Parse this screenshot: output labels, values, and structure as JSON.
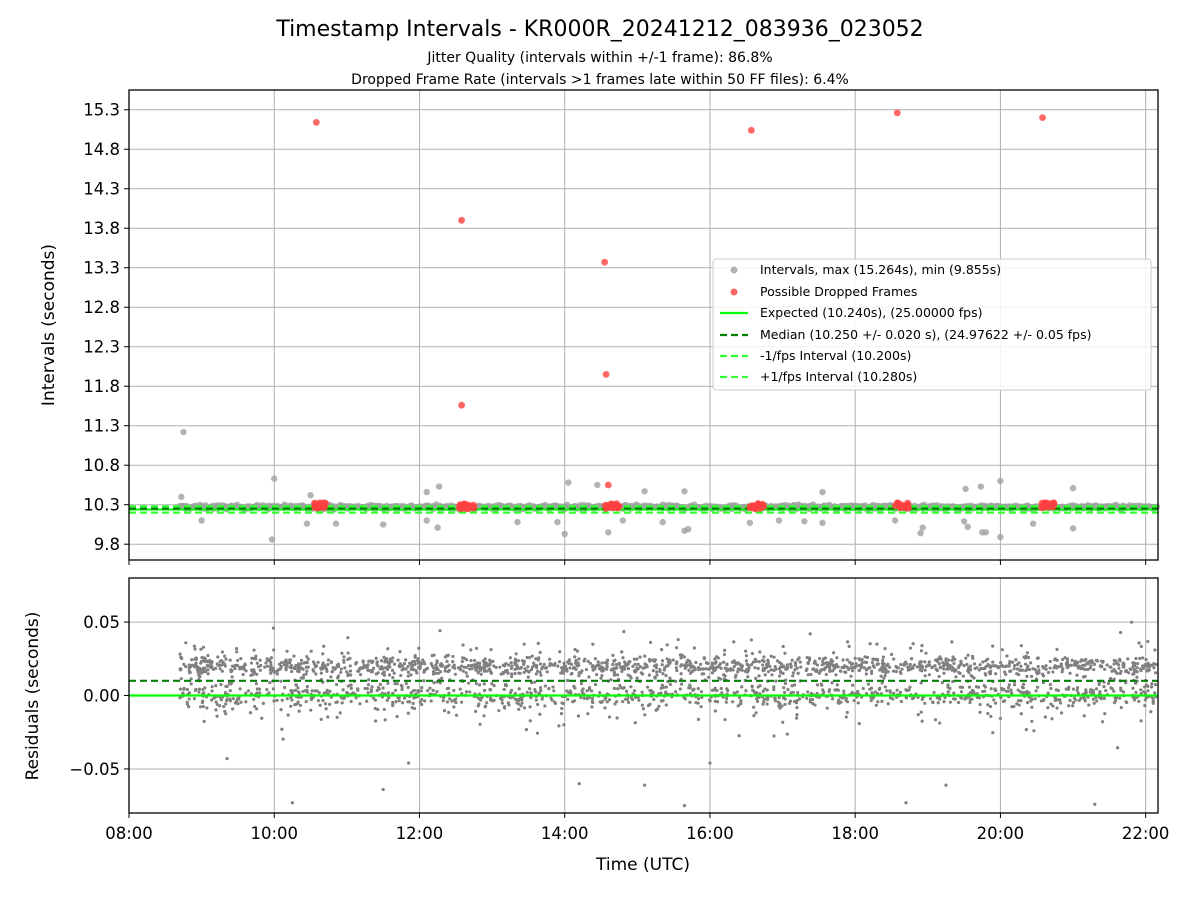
{
  "figure": {
    "title": "Timestamp Intervals - KR000R_20241212_083936_023052",
    "subtitle_line1": "Jitter Quality (intervals within +/-1 frame): 86.8%",
    "subtitle_line2": "Dropped Frame Rate (intervals >1 frames late within 50 FF files): 6.4%"
  },
  "colors": {
    "intervals": "#a0a0a0",
    "dropped": "#ff4040",
    "expected": "#00ff00",
    "median": "#008000",
    "fps_bounds": "#33ff33",
    "residual_points": "#808080",
    "grid": "#b0b0b0"
  },
  "chart_data": [
    {
      "type": "scatter",
      "panel": "top",
      "ylabel": "Intervals (seconds)",
      "xlabel": "",
      "x_unit": "hours UTC",
      "xlim": [
        8.0,
        22.17
      ],
      "ylim": [
        9.6,
        15.55
      ],
      "x_ticks": [
        8,
        10,
        12,
        14,
        16,
        18,
        20,
        22
      ],
      "y_ticks": [
        9.8,
        10.3,
        10.8,
        11.3,
        11.8,
        12.3,
        12.8,
        13.3,
        13.8,
        14.3,
        14.8,
        15.3
      ],
      "y_tick_labels": [
        "9.8",
        "10.3",
        "10.8",
        "11.3",
        "11.8",
        "12.3",
        "12.8",
        "13.3",
        "13.8",
        "14.3",
        "14.8",
        "15.3"
      ],
      "grid": true,
      "legend_position": "center-right",
      "series": [
        {
          "name": "Intervals, max (15.264s), min (9.855s)",
          "kind": "points",
          "x_range": [
            8.7,
            22.15
          ],
          "band_center": 10.27,
          "band_spread": 0.05,
          "outliers": [
            {
              "x": 8.75,
              "y": 11.22
            },
            {
              "x": 8.72,
              "y": 10.4
            },
            {
              "x": 9.0,
              "y": 10.1
            },
            {
              "x": 9.97,
              "y": 9.86
            },
            {
              "x": 10.0,
              "y": 10.63
            },
            {
              "x": 10.45,
              "y": 10.06
            },
            {
              "x": 10.5,
              "y": 10.42
            },
            {
              "x": 10.85,
              "y": 10.06
            },
            {
              "x": 11.5,
              "y": 10.05
            },
            {
              "x": 12.1,
              "y": 10.1
            },
            {
              "x": 12.1,
              "y": 10.46
            },
            {
              "x": 12.25,
              "y": 10.01
            },
            {
              "x": 12.27,
              "y": 10.53
            },
            {
              "x": 13.35,
              "y": 10.08
            },
            {
              "x": 13.9,
              "y": 10.08
            },
            {
              "x": 14.0,
              "y": 9.93
            },
            {
              "x": 14.05,
              "y": 10.58
            },
            {
              "x": 14.45,
              "y": 10.55
            },
            {
              "x": 14.6,
              "y": 9.95
            },
            {
              "x": 14.8,
              "y": 10.1
            },
            {
              "x": 15.1,
              "y": 10.47
            },
            {
              "x": 15.35,
              "y": 10.08
            },
            {
              "x": 15.65,
              "y": 10.47
            },
            {
              "x": 15.65,
              "y": 9.97
            },
            {
              "x": 15.7,
              "y": 9.99
            },
            {
              "x": 16.55,
              "y": 10.07
            },
            {
              "x": 16.95,
              "y": 10.1
            },
            {
              "x": 17.3,
              "y": 10.09
            },
            {
              "x": 17.55,
              "y": 10.07
            },
            {
              "x": 17.55,
              "y": 10.46
            },
            {
              "x": 18.55,
              "y": 10.1
            },
            {
              "x": 18.9,
              "y": 9.94
            },
            {
              "x": 18.93,
              "y": 10.01
            },
            {
              "x": 19.5,
              "y": 10.09
            },
            {
              "x": 19.52,
              "y": 10.5
            },
            {
              "x": 19.55,
              "y": 10.02
            },
            {
              "x": 19.73,
              "y": 10.53
            },
            {
              "x": 19.75,
              "y": 9.95
            },
            {
              "x": 19.8,
              "y": 9.95
            },
            {
              "x": 20.0,
              "y": 10.6
            },
            {
              "x": 20.0,
              "y": 9.89
            },
            {
              "x": 20.45,
              "y": 10.06
            },
            {
              "x": 21.0,
              "y": 10.51
            },
            {
              "x": 21.0,
              "y": 10.0
            }
          ]
        },
        {
          "name": "Possible Dropped Frames",
          "kind": "points",
          "points": [
            {
              "x": 10.58,
              "y": 15.14
            },
            {
              "x": 12.58,
              "y": 13.9
            },
            {
              "x": 12.58,
              "y": 11.56
            },
            {
              "x": 14.55,
              "y": 13.37
            },
            {
              "x": 14.57,
              "y": 11.95
            },
            {
              "x": 14.6,
              "y": 10.55
            },
            {
              "x": 16.57,
              "y": 15.04
            },
            {
              "x": 18.58,
              "y": 15.26
            },
            {
              "x": 20.58,
              "y": 15.2
            }
          ],
          "clusters": [
            {
              "x_start": 10.55,
              "x_end": 10.75,
              "y": 10.29
            },
            {
              "x_start": 12.55,
              "x_end": 12.75,
              "y": 10.28
            },
            {
              "x_start": 14.55,
              "x_end": 14.75,
              "y": 10.28
            },
            {
              "x_start": 16.55,
              "x_end": 16.75,
              "y": 10.28
            },
            {
              "x_start": 18.55,
              "x_end": 18.75,
              "y": 10.29
            },
            {
              "x_start": 20.55,
              "x_end": 20.75,
              "y": 10.29
            }
          ]
        },
        {
          "name": "Expected (10.240s), (25.00000 fps)",
          "kind": "hline",
          "y": 10.24,
          "style": "solid"
        },
        {
          "name": "Median (10.250 +/- 0.020 s), (24.97622 +/- 0.05 fps)",
          "kind": "hline",
          "y": 10.25,
          "style": "dashed"
        },
        {
          "name": "-1/fps Interval (10.200s)",
          "kind": "hline",
          "y": 10.2,
          "style": "dashed"
        },
        {
          "name": "+1/fps Interval (10.280s)",
          "kind": "hline",
          "y": 10.28,
          "style": "dashed"
        }
      ]
    },
    {
      "type": "scatter",
      "panel": "bottom",
      "xlabel": "Time (UTC)",
      "ylabel": "Residuals (seconds)",
      "xlim": [
        8.0,
        22.17
      ],
      "ylim": [
        -0.08,
        0.08
      ],
      "x_ticks": [
        8,
        10,
        12,
        14,
        16,
        18,
        20,
        22
      ],
      "x_tick_labels": [
        "08:00",
        "10:00",
        "12:00",
        "14:00",
        "16:00",
        "18:00",
        "20:00",
        "22:00"
      ],
      "y_ticks": [
        -0.05,
        0.0,
        0.05
      ],
      "y_tick_labels": [
        "−0.05",
        "0.00",
        "0.05"
      ],
      "grid": true,
      "series": [
        {
          "kind": "points",
          "x_range": [
            8.7,
            22.15
          ],
          "primary_cluster": 0.02,
          "secondary_cluster": 0.0,
          "spread": 0.03,
          "outliers": [
            {
              "x": 9.35,
              "y": -0.043
            },
            {
              "x": 10.25,
              "y": -0.073
            },
            {
              "x": 11.5,
              "y": -0.064
            },
            {
              "x": 11.85,
              "y": -0.046
            },
            {
              "x": 14.2,
              "y": -0.06
            },
            {
              "x": 15.1,
              "y": -0.061
            },
            {
              "x": 15.65,
              "y": -0.075
            },
            {
              "x": 16.0,
              "y": -0.046
            },
            {
              "x": 18.7,
              "y": -0.073
            },
            {
              "x": 19.25,
              "y": -0.061
            },
            {
              "x": 21.3,
              "y": -0.074
            }
          ]
        },
        {
          "name": "Expected",
          "kind": "hline",
          "y": 0.0,
          "style": "solid"
        },
        {
          "name": "Median",
          "kind": "hline",
          "y": 0.01,
          "style": "dashed"
        }
      ]
    }
  ]
}
